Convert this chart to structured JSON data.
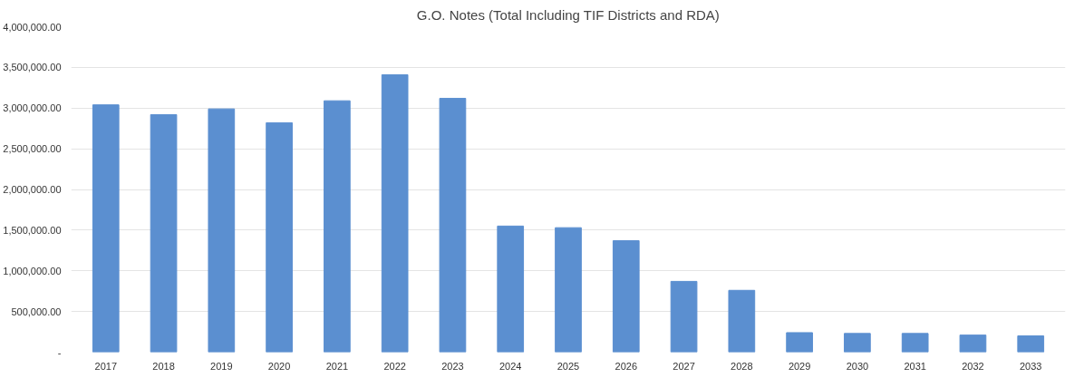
{
  "chart_data": {
    "type": "bar",
    "title": "G.O. Notes (Total Including TIF Districts and RDA)",
    "categories": [
      "2017",
      "2018",
      "2019",
      "2020",
      "2021",
      "2022",
      "2023",
      "2024",
      "2025",
      "2026",
      "2027",
      "2028",
      "2029",
      "2030",
      "2031",
      "2032",
      "2033"
    ],
    "series": [
      {
        "color": "#5b8fd0",
        "values": [
          3040000,
          2920000,
          2990000,
          2820000,
          3090000,
          3410000,
          3120000,
          1550000,
          1530000,
          1370000,
          870000,
          760000,
          240000,
          230000,
          230000,
          210000,
          200000
        ]
      }
    ],
    "ylim": [
      0,
      4000000
    ],
    "yticks": [
      {
        "value": 0,
        "label": "-"
      },
      {
        "value": 500000,
        "label": "500,000.00"
      },
      {
        "value": 1000000,
        "label": "1,000,000.00"
      },
      {
        "value": 1500000,
        "label": "1,500,000.00"
      },
      {
        "value": 2000000,
        "label": "2,000,000.00"
      },
      {
        "value": 2500000,
        "label": "2,500,000.00"
      },
      {
        "value": 3000000,
        "label": "3,000,000.00"
      },
      {
        "value": 3500000,
        "label": "3,500,000.00"
      },
      {
        "value": 4000000,
        "label": "4,000,000.00"
      }
    ],
    "grid": "y"
  }
}
